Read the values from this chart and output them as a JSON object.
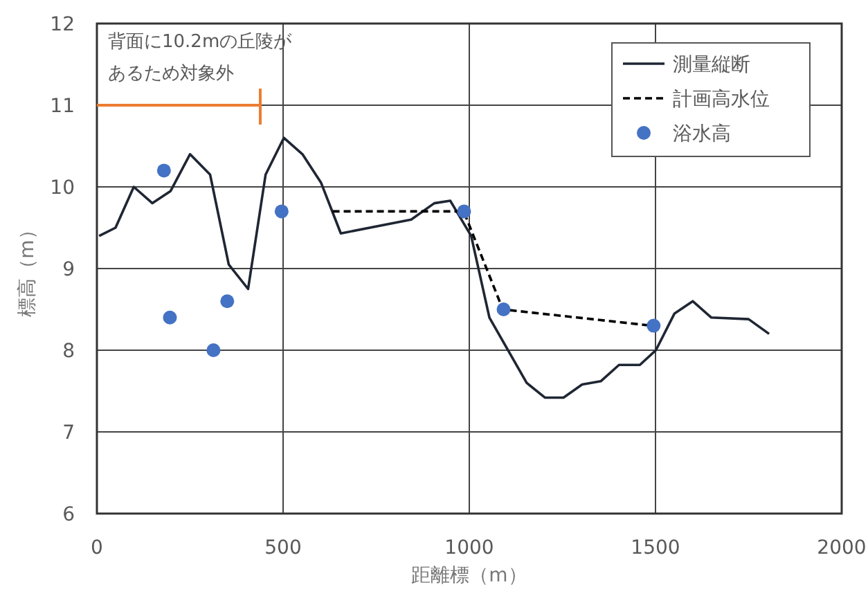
{
  "chart_data": {
    "type": "line",
    "xlabel": "距離標（m）",
    "ylabel": "標高（m）",
    "xlim": [
      0,
      2000
    ],
    "xticks": [
      0,
      500,
      1000,
      1500,
      2000
    ],
    "ylim": [
      6,
      12
    ],
    "yticks": [
      6,
      7,
      8,
      9,
      10,
      11,
      12
    ],
    "grid": true,
    "legend": "top right",
    "series": [
      {
        "name": "測量縦断",
        "color": "#1f2633",
        "line_style": "solid",
        "marker": "none",
        "x": [
          6,
          50,
          99,
          149,
          198,
          250,
          304,
          354,
          406,
          453,
          502,
          552,
          602,
          655,
          844,
          906,
          949,
          1005,
          1054,
          1154,
          1203,
          1253,
          1303,
          1353,
          1402,
          1458,
          1501,
          1551,
          1600,
          1650,
          1750,
          1805
        ],
        "values": [
          9.4,
          9.5,
          10.0,
          9.8,
          9.95,
          10.4,
          10.15,
          9.05,
          8.75,
          10.15,
          10.6,
          10.4,
          10.05,
          9.43,
          9.6,
          9.8,
          9.83,
          9.4,
          8.4,
          7.6,
          7.42,
          7.42,
          7.58,
          7.62,
          7.82,
          7.82,
          8.0,
          8.45,
          8.6,
          8.4,
          8.38,
          8.2
        ]
      },
      {
        "name": "計画高水位",
        "color": "#000000",
        "line_style": "dashed",
        "marker": "none",
        "x": [
          633,
          985,
          1090,
          1490
        ],
        "values": [
          9.7,
          9.7,
          8.5,
          8.3
        ]
      },
      {
        "name": "浴水高",
        "type": "scatter",
        "color": "#4472c4",
        "marker": "circle",
        "x": [
          180,
          196,
          313,
          350,
          496,
          986,
          1092,
          1495
        ],
        "values": [
          10.2,
          8.4,
          8.0,
          8.6,
          9.7,
          9.7,
          8.5,
          8.3
        ]
      }
    ],
    "annotations": [
      "背面に10.2mの丘陵があるため対象外"
    ]
  }
}
